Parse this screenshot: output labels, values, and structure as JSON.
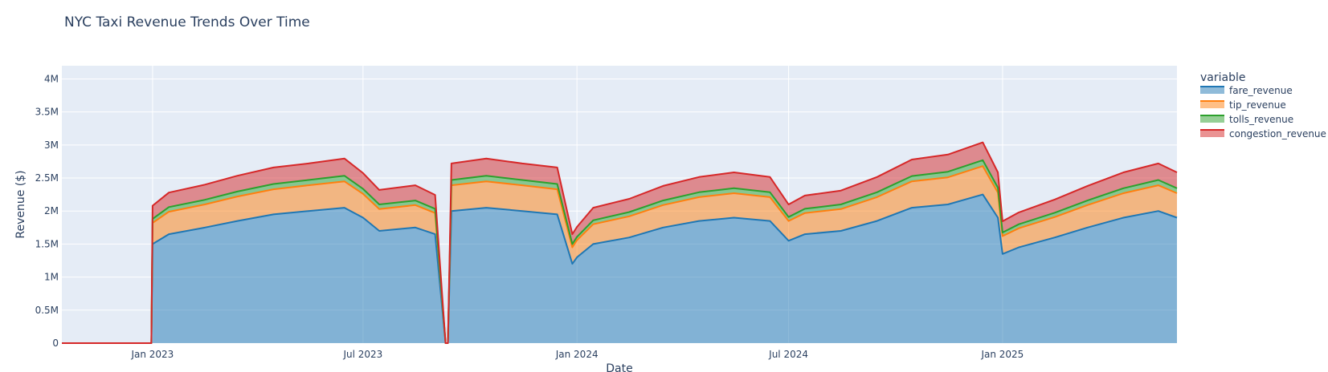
{
  "chart_data": {
    "type": "area",
    "title": "NYC Taxi Revenue Trends Over Time",
    "xlabel": "Date",
    "ylabel": "Revenue ($)",
    "legend_title": "variable",
    "legend_position": "right",
    "stacked": true,
    "grid": true,
    "x_range": [
      "2022-10-15",
      "2025-05-31"
    ],
    "ylim": [
      0,
      4200000
    ],
    "x_ticks": [
      "2023-01-01",
      "2023-07-01",
      "2024-01-01",
      "2024-07-01",
      "2025-01-01"
    ],
    "x_tick_labels": [
      "Jan 2023",
      "Jul 2023",
      "Jan 2024",
      "Jul 2024",
      "Jan 2025"
    ],
    "y_ticks": [
      0,
      500000,
      1000000,
      1500000,
      2000000,
      2500000,
      3000000,
      3500000,
      4000000
    ],
    "y_tick_labels": [
      "0",
      "0.5M",
      "1M",
      "1.5M",
      "2M",
      "2.5M",
      "3M",
      "3.5M",
      "4M"
    ],
    "x_monthly": [
      "2022-10-15",
      "2022-12-31",
      "2023-01-01",
      "2023-01-15",
      "2023-02-15",
      "2023-03-15",
      "2023-04-15",
      "2023-05-15",
      "2023-06-15",
      "2023-07-01",
      "2023-07-15",
      "2023-08-15",
      "2023-09-01",
      "2023-09-10",
      "2023-09-12",
      "2023-09-15",
      "2023-10-15",
      "2023-11-15",
      "2023-12-15",
      "2023-12-28",
      "2024-01-01",
      "2024-01-15",
      "2024-02-15",
      "2024-03-15",
      "2024-04-15",
      "2024-05-15",
      "2024-06-15",
      "2024-07-01",
      "2024-07-15",
      "2024-08-15",
      "2024-09-15",
      "2024-10-15",
      "2024-11-15",
      "2024-12-15",
      "2024-12-28",
      "2025-01-01",
      "2025-01-15",
      "2025-02-15",
      "2025-03-15",
      "2025-04-15",
      "2025-05-15",
      "2025-05-31"
    ],
    "series": [
      {
        "name": "fare_revenue",
        "color": "#1f77b4",
        "values": [
          0,
          0,
          1500000,
          1650000,
          1750000,
          1850000,
          1950000,
          2000000,
          2050000,
          1900000,
          1700000,
          1750000,
          1650000,
          0,
          0,
          2000000,
          2050000,
          2000000,
          1950000,
          1200000,
          1300000,
          1500000,
          1600000,
          1750000,
          1850000,
          1900000,
          1850000,
          1550000,
          1650000,
          1700000,
          1850000,
          2050000,
          2100000,
          2250000,
          1900000,
          1350000,
          1450000,
          1600000,
          1750000,
          1900000,
          2000000,
          1900000
        ]
      },
      {
        "name": "tip_revenue",
        "color": "#ff7f0e",
        "values": [
          0,
          0,
          320000,
          340000,
          350000,
          370000,
          380000,
          390000,
          400000,
          360000,
          330000,
          340000,
          320000,
          0,
          0,
          390000,
          400000,
          390000,
          380000,
          250000,
          260000,
          300000,
          320000,
          340000,
          360000,
          370000,
          360000,
          300000,
          320000,
          330000,
          360000,
          400000,
          410000,
          430000,
          380000,
          270000,
          290000,
          310000,
          340000,
          370000,
          390000,
          370000
        ]
      },
      {
        "name": "tolls_revenue",
        "color": "#2ca02c",
        "values": [
          0,
          0,
          60000,
          70000,
          70000,
          75000,
          80000,
          80000,
          85000,
          75000,
          70000,
          70000,
          65000,
          0,
          0,
          80000,
          85000,
          80000,
          80000,
          50000,
          50000,
          60000,
          65000,
          70000,
          75000,
          75000,
          75000,
          60000,
          65000,
          70000,
          75000,
          80000,
          85000,
          90000,
          75000,
          55000,
          60000,
          65000,
          70000,
          75000,
          80000,
          75000
        ]
      },
      {
        "name": "congestion_revenue",
        "color": "#d62728",
        "values": [
          0,
          0,
          200000,
          220000,
          230000,
          240000,
          250000,
          250000,
          260000,
          240000,
          220000,
          230000,
          210000,
          0,
          0,
          250000,
          260000,
          250000,
          250000,
          150000,
          150000,
          190000,
          200000,
          220000,
          230000,
          240000,
          230000,
          190000,
          200000,
          210000,
          230000,
          250000,
          260000,
          270000,
          230000,
          170000,
          180000,
          200000,
          220000,
          240000,
          250000,
          240000
        ]
      }
    ]
  }
}
